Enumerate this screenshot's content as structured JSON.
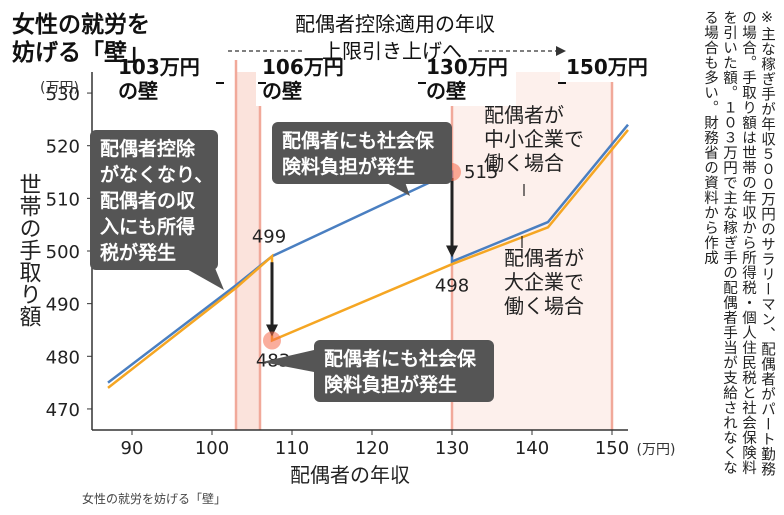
{
  "title": "女性の就労を\n妨げる「壁」",
  "header": "配偶者控除適用の年収",
  "header_sub": "上限引き上げへ",
  "note": "※主な稼ぎ手が年収５００万円のサラリーマン、配偶者がパート勤務の場合。手取り額は世帯の年収から所得税・個人住民税と社会保険料を引いた額。１０３万円で主な稼ぎ手の配偶者手当が支給されなくなる場合も多い。財務省の資料から作成",
  "caption": "女性の就労を妨げる「壁」",
  "walls": [
    {
      "value": 103,
      "label": "103万円\nの壁"
    },
    {
      "value": 106,
      "label": "106万円\nの壁"
    },
    {
      "value": 130,
      "label": "130万円\nの壁"
    },
    {
      "value": 150,
      "label": "150万円"
    }
  ],
  "callouts": [
    {
      "text": "配偶者控除\nがなくなり、\n配偶者の収\n入にも所得\n税が発生"
    },
    {
      "text": "配偶者にも社会保\n険料負担が発生"
    },
    {
      "text": "配偶者にも社会保\n険料負担が発生"
    }
  ],
  "series_labels": [
    "配偶者が\n中小企業で\n働く場合",
    "配偶者が\n大企業で\n働く場合"
  ],
  "point_labels": [
    {
      "text": "499",
      "x": 107.5,
      "y": 499
    },
    {
      "text": "483",
      "x": 107.5,
      "y": 483
    },
    {
      "text": "515",
      "x": 130,
      "y": 515
    },
    {
      "text": "498",
      "x": 130,
      "y": 498
    }
  ],
  "colors": {
    "small_company": "#4a7fc1",
    "large_company": "#f5a623",
    "wall_band": "#fbe3dc",
    "wall_line": "#f1a99a",
    "callout": "#555555"
  },
  "chart_data": {
    "type": "line",
    "xlabel": "配偶者の年収",
    "xunit": "(万円)",
    "ylabel": "世帯の手取り額",
    "yunit": "(万円)",
    "xlim": [
      85,
      152
    ],
    "ylim": [
      466,
      534
    ],
    "xticks": [
      90,
      100,
      110,
      120,
      130,
      140,
      150
    ],
    "yticks": [
      470,
      480,
      490,
      500,
      510,
      520,
      530
    ],
    "series": [
      {
        "name": "配偶者が中小企業で働く場合",
        "points": [
          [
            87,
            475
          ],
          [
            103,
            493.5
          ],
          [
            107.5,
            499
          ],
          [
            130,
            515
          ],
          [
            130,
            498
          ],
          [
            142,
            505.5
          ],
          [
            152,
            524
          ]
        ]
      },
      {
        "name": "配偶者が大企業で働く場合",
        "points": [
          [
            87,
            474
          ],
          [
            103,
            493
          ],
          [
            107.5,
            499
          ],
          [
            107.5,
            483
          ],
          [
            130,
            497.5
          ],
          [
            142,
            504.5
          ],
          [
            152,
            523
          ]
        ]
      }
    ]
  }
}
